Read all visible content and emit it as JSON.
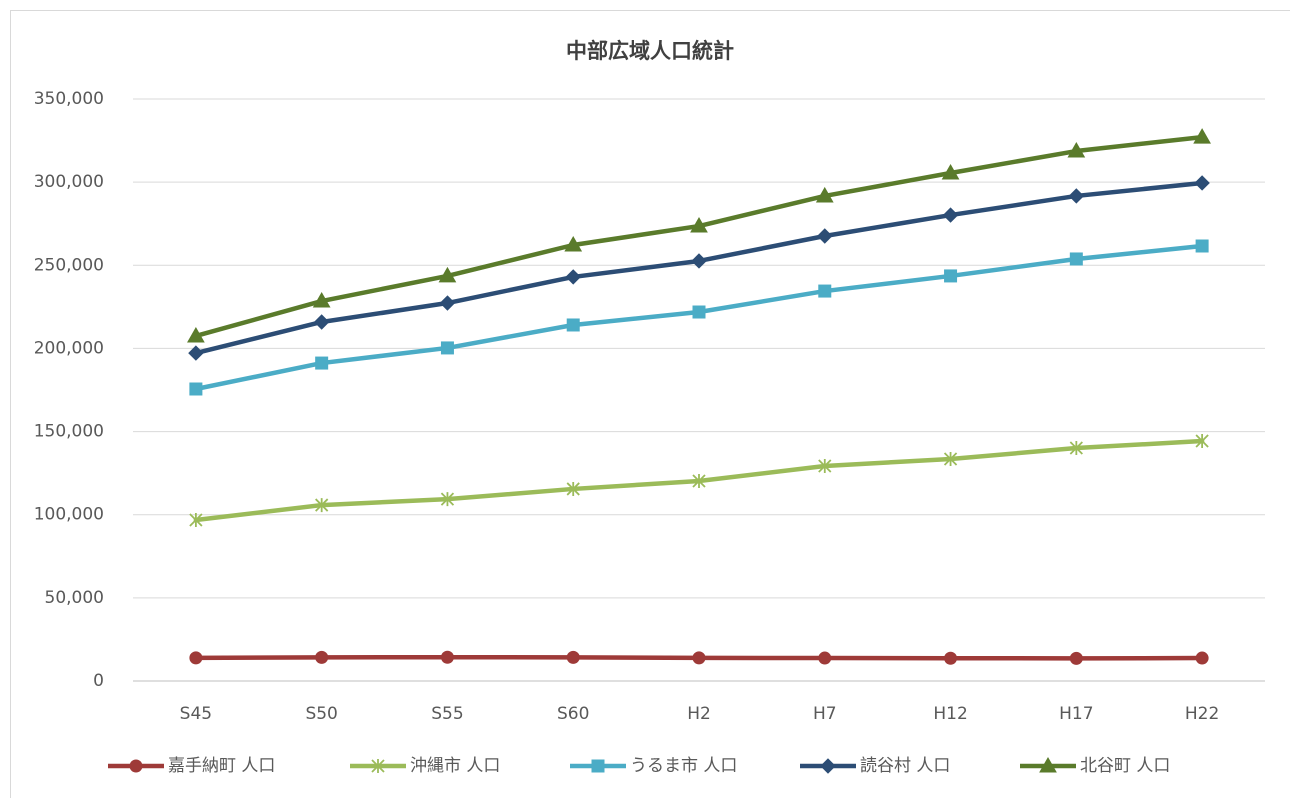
{
  "chart_data": {
    "type": "line",
    "title": "中部広域人口統計",
    "categories": [
      "S45",
      "S50",
      "S55",
      "S60",
      "H2",
      "H7",
      "H12",
      "H17",
      "H22"
    ],
    "series": [
      {
        "name": "嘉手納町 人口",
        "color": "#9e3a38",
        "marker": "circle",
        "values": [
          13900,
          14200,
          14300,
          14200,
          13900,
          13800,
          13700,
          13600,
          13800
        ]
      },
      {
        "name": "沖縄市 人口",
        "color": "#9bbb59",
        "marker": "star",
        "values": [
          96800,
          105800,
          109400,
          115500,
          120300,
          129300,
          133500,
          140100,
          144300
        ]
      },
      {
        "name": "うるま市 人口",
        "color": "#4bacc6",
        "marker": "square",
        "values": [
          175600,
          191200,
          200300,
          214100,
          221900,
          234500,
          243600,
          253800,
          261600
        ]
      },
      {
        "name": "読谷村 人口",
        "color": "#2c4d75",
        "marker": "diamond",
        "values": [
          197200,
          215900,
          227300,
          243000,
          252600,
          267600,
          280200,
          291700,
          299500
        ]
      },
      {
        "name": "北谷町 人口",
        "color": "#5a7b2b",
        "marker": "triangle",
        "values": [
          207500,
          228500,
          243600,
          262200,
          273600,
          291700,
          305500,
          318700,
          327100
        ]
      }
    ],
    "ylim": [
      0,
      350000
    ],
    "yticks": [
      0,
      {
        "value": 50000,
        "label": "50,000"
      },
      {
        "value": 100000,
        "label": "100,000"
      },
      {
        "value": 150000,
        "label": "150,000"
      },
      {
        "value": 200000,
        "label": "200,000"
      },
      {
        "value": 250000,
        "label": "250,000"
      },
      {
        "value": 300000,
        "label": "300,000"
      },
      {
        "value": 350000,
        "label": "350,000"
      }
    ],
    "grid": true,
    "legend": "bottom"
  }
}
